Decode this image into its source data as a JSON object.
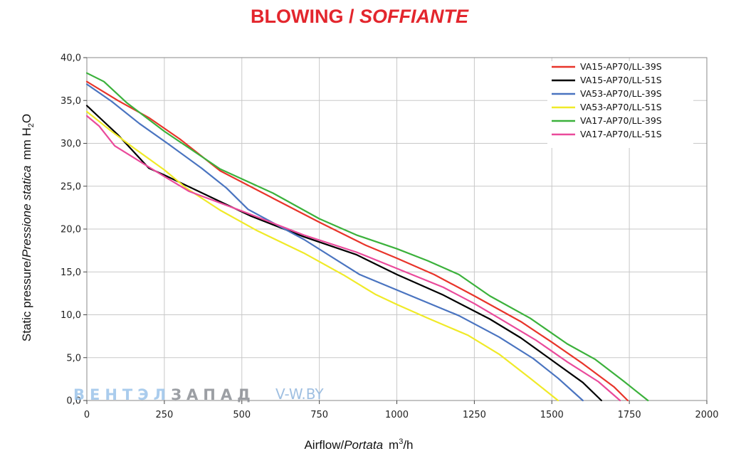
{
  "title": {
    "main": "BLOWING",
    "separator": " / ",
    "italic": "SOFFIANTE",
    "color": "#e3262d"
  },
  "axes": {
    "y_label": {
      "normal": "Static pressure",
      "separator": "/",
      "italic": "Pressione statica",
      "unit_prefix": "mm  H",
      "unit_sub": "2",
      "unit_suffix": "O"
    },
    "x_label": {
      "normal": "Airflow",
      "separator": "/",
      "italic": "Portata",
      "unit_prefix": "m",
      "unit_sup": "3",
      "unit_suffix": "/h"
    }
  },
  "watermark": {
    "brand_blue": "ВЕНТЭЛ",
    "brand_gray": "ЗАПАД",
    "site": "V-W.BY"
  },
  "chart_data": {
    "type": "line",
    "xlim": [
      0,
      2000
    ],
    "ylim": [
      0,
      40
    ],
    "x_ticks": [
      0,
      250,
      500,
      750,
      1000,
      1250,
      1500,
      1750,
      2000
    ],
    "x_tick_labels": [
      "0",
      "250",
      "500",
      "750",
      "1000",
      "1250",
      "1500",
      "1750",
      "2000"
    ],
    "y_ticks": [
      0,
      5,
      10,
      15,
      20,
      25,
      30,
      35,
      40
    ],
    "y_tick_labels": [
      "0,0",
      "5,0",
      "10,0",
      "15,0",
      "20,0",
      "25,0",
      "30,0",
      "35,0",
      "40,0"
    ],
    "grid": true,
    "legend_position": "top-right",
    "series": [
      {
        "name": "VA15-AP70/LL-39S",
        "color": "#e8342a",
        "points": [
          [
            0,
            37.2
          ],
          [
            100,
            35.0
          ],
          [
            200,
            33.0
          ],
          [
            300,
            30.5
          ],
          [
            430,
            26.8
          ],
          [
            600,
            23.6
          ],
          [
            750,
            20.8
          ],
          [
            900,
            18.1
          ],
          [
            1000,
            16.6
          ],
          [
            1120,
            14.7
          ],
          [
            1250,
            12.2
          ],
          [
            1400,
            9.2
          ],
          [
            1500,
            6.8
          ],
          [
            1600,
            4.3
          ],
          [
            1700,
            1.6
          ],
          [
            1745,
            0
          ]
        ]
      },
      {
        "name": "VA15-AP70/LL-51S",
        "color": "#000000",
        "points": [
          [
            0,
            34.4
          ],
          [
            50,
            32.7
          ],
          [
            100,
            31.0
          ],
          [
            200,
            27.1
          ],
          [
            250,
            26.3
          ],
          [
            430,
            23.2
          ],
          [
            530,
            21.5
          ],
          [
            700,
            19.1
          ],
          [
            870,
            17.0
          ],
          [
            1000,
            14.7
          ],
          [
            1150,
            12.3
          ],
          [
            1300,
            9.5
          ],
          [
            1400,
            7.3
          ],
          [
            1500,
            4.7
          ],
          [
            1600,
            2.1
          ],
          [
            1660,
            0
          ]
        ]
      },
      {
        "name": "VA53-AP70/LL-39S",
        "color": "#4a74c0",
        "points": [
          [
            0,
            36.9
          ],
          [
            80,
            34.9
          ],
          [
            170,
            32.3
          ],
          [
            260,
            30.0
          ],
          [
            370,
            27.1
          ],
          [
            450,
            24.8
          ],
          [
            520,
            22.3
          ],
          [
            700,
            18.8
          ],
          [
            880,
            14.7
          ],
          [
            1000,
            12.9
          ],
          [
            1200,
            9.9
          ],
          [
            1330,
            7.4
          ],
          [
            1440,
            4.9
          ],
          [
            1520,
            2.6
          ],
          [
            1600,
            0
          ]
        ]
      },
      {
        "name": "VA53-AP70/LL-51S",
        "color": "#f0ea28",
        "points": [
          [
            0,
            33.7
          ],
          [
            80,
            31.4
          ],
          [
            150,
            29.5
          ],
          [
            250,
            26.9
          ],
          [
            320,
            24.8
          ],
          [
            430,
            22.2
          ],
          [
            550,
            19.8
          ],
          [
            700,
            17.2
          ],
          [
            830,
            14.6
          ],
          [
            930,
            12.4
          ],
          [
            1000,
            11.2
          ],
          [
            1100,
            9.6
          ],
          [
            1230,
            7.6
          ],
          [
            1330,
            5.4
          ],
          [
            1430,
            2.6
          ],
          [
            1520,
            0
          ]
        ]
      },
      {
        "name": "VA17-AP70/LL-39S",
        "color": "#3bb13b",
        "points": [
          [
            0,
            38.2
          ],
          [
            55,
            37.2
          ],
          [
            130,
            34.7
          ],
          [
            250,
            31.4
          ],
          [
            430,
            27.0
          ],
          [
            600,
            24.2
          ],
          [
            750,
            21.2
          ],
          [
            870,
            19.3
          ],
          [
            1000,
            17.7
          ],
          [
            1100,
            16.3
          ],
          [
            1200,
            14.7
          ],
          [
            1300,
            12.2
          ],
          [
            1430,
            9.6
          ],
          [
            1550,
            6.6
          ],
          [
            1640,
            4.8
          ],
          [
            1730,
            2.3
          ],
          [
            1810,
            0
          ]
        ]
      },
      {
        "name": "VA17-AP70/LL-51S",
        "color": "#ea4a9b",
        "points": [
          [
            0,
            33.2
          ],
          [
            40,
            32.0
          ],
          [
            90,
            29.7
          ],
          [
            210,
            27.0
          ],
          [
            330,
            24.4
          ],
          [
            500,
            22.1
          ],
          [
            700,
            19.3
          ],
          [
            870,
            17.3
          ],
          [
            1000,
            15.4
          ],
          [
            1150,
            13.2
          ],
          [
            1250,
            11.3
          ],
          [
            1330,
            9.6
          ],
          [
            1450,
            7.0
          ],
          [
            1550,
            4.5
          ],
          [
            1650,
            2.2
          ],
          [
            1720,
            0
          ]
        ]
      }
    ]
  }
}
